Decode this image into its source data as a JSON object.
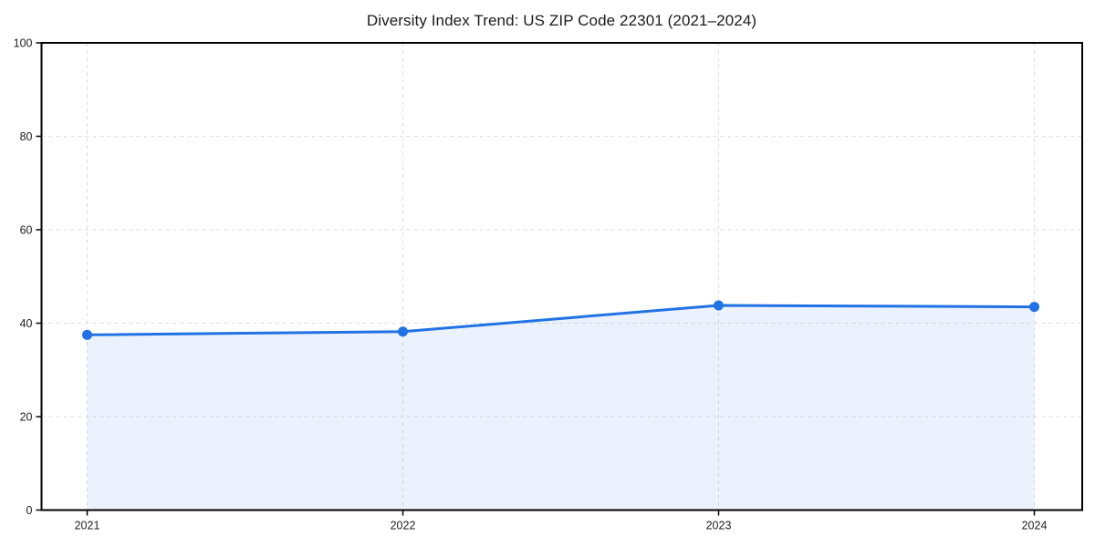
{
  "figure": {
    "background": "#ffffff"
  },
  "chart_data": {
    "type": "line",
    "title": "Diversity Index Trend: US ZIP Code 22301 (2021–2024)",
    "categories": [
      "2021",
      "2022",
      "2023",
      "2024"
    ],
    "series": [
      {
        "name": "Diversity Index",
        "values": [
          37.5,
          38.2,
          43.8,
          43.5
        ]
      }
    ],
    "xlabel": "",
    "ylabel": "",
    "ylim": [
      0,
      100
    ],
    "yticks": [
      0,
      20,
      40,
      60,
      80,
      100
    ],
    "grid": true,
    "grid_style": "dashed",
    "legend_position": "none",
    "area_fill": true,
    "markers": true,
    "colors": {
      "line": "#2172e4",
      "marker": "#2172e4",
      "area_fill_rgba": "rgba(33,114,228,0.09)",
      "grid": "#dedede",
      "spine": "#000000",
      "tick": "#000000",
      "title_text": "#1a1a1a",
      "tick_text": "#1f1f1f",
      "background": "#ffffff"
    }
  }
}
